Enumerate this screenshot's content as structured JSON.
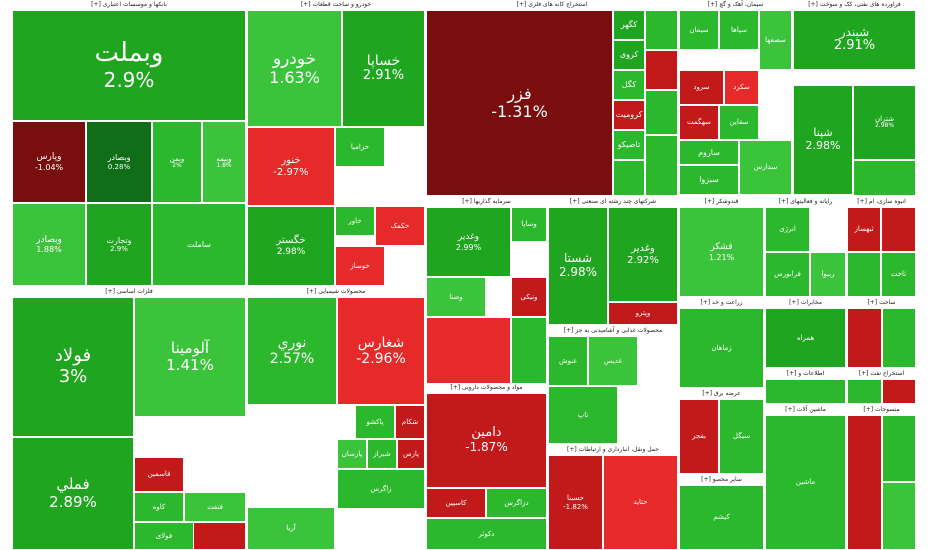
{
  "colors": {
    "strong_green": "#1fa51f",
    "green": "#2cb82c",
    "light_green": "#3cc33c",
    "dark_green": "#0f6e17",
    "dark_red": "#7a0d0d",
    "red": "#c21a1a",
    "bright_red": "#e62a2a"
  },
  "chart_data": {
    "type": "treemap",
    "sectors": [
      {
        "id": "s1",
        "title": "بانکها و موسسات اعتباری [+]"
      },
      {
        "id": "s2",
        "title": "خودرو و ساخت قطعات [+]"
      },
      {
        "id": "s3",
        "title": "استخراج کانه های فلزی [+]"
      },
      {
        "id": "s4",
        "title": "سیمان، آهک و گچ [+]"
      },
      {
        "id": "s5",
        "title": "فراورده های نفتی، کک و سوخت [+]"
      },
      {
        "id": "s6",
        "title": "فلزات اساسی [+]"
      },
      {
        "id": "s7",
        "title": "محصولات شیمیایی [+]"
      },
      {
        "id": "s8",
        "title": "سرمایه گذاریها [+]"
      },
      {
        "id": "s9",
        "title": "شرکتهای چند رشته ای صنعتی [+]"
      },
      {
        "id": "s10",
        "title": "قندوشکر [+]"
      },
      {
        "id": "s11",
        "title": "رایانه و فعالیتهای [+]"
      },
      {
        "id": "s12",
        "title": "انبوه سازی، ام [+]"
      },
      {
        "id": "s13",
        "title": "مواد و محصولات دارویی [+]"
      },
      {
        "id": "s14",
        "title": "محصولات غذایی و آشامیدنی به جز [+]"
      },
      {
        "id": "s15",
        "title": "حمل ونقل، انبارداری و ارتباطات [+]"
      },
      {
        "id": "s16",
        "title": "زراعت و خد [+]"
      },
      {
        "id": "s17",
        "title": "مخابرات [+]"
      },
      {
        "id": "s18",
        "title": "ساخت [+]"
      },
      {
        "id": "s19",
        "title": "عرضه برق [+]"
      },
      {
        "id": "s20",
        "title": "اطلاعات و [+]"
      },
      {
        "id": "s21",
        "title": "استخراج نفت [+]"
      },
      {
        "id": "s22",
        "title": "منسوجات [+]"
      },
      {
        "id": "s23",
        "title": "ماشین آلات [+]"
      },
      {
        "id": "s24",
        "title": "سایر محصو [+]"
      }
    ],
    "tiles": [
      {
        "sector": "s1",
        "name": "وبملت",
        "pct": "2.9%",
        "change": 2.9
      },
      {
        "sector": "s1",
        "name": "وپارس",
        "pct": "-1.04%",
        "change": -1.04
      },
      {
        "sector": "s1",
        "name": "وبصادر",
        "pct": "0.28%",
        "change": 0.28
      },
      {
        "sector": "s1",
        "name": "وبمن",
        "pct": "2%",
        "change": 2
      },
      {
        "sector": "s1",
        "name": "وبیمه",
        "pct": "1.8%",
        "change": 1.8
      },
      {
        "sector": "s1",
        "name": "وبصادر",
        "pct": "1.88%",
        "change": 1.88
      },
      {
        "sector": "s1",
        "name": "وتجارت",
        "pct": "2.9%",
        "change": 2.9
      },
      {
        "sector": "s1",
        "name": "ساملت",
        "pct": "",
        "change": 2.5
      },
      {
        "sector": "s2",
        "name": "خودرو",
        "pct": "1.63%",
        "change": 1.63
      },
      {
        "sector": "s2",
        "name": "خساپا",
        "pct": "2.91%",
        "change": 2.91
      },
      {
        "sector": "s2",
        "name": "خنور",
        "pct": "-2.97%",
        "change": -2.97
      },
      {
        "sector": "s2",
        "name": "خگستر",
        "pct": "2.98%",
        "change": 2.98
      },
      {
        "sector": "s2",
        "name": "خزامیا",
        "pct": "",
        "change": 2.5
      },
      {
        "sector": "s2",
        "name": "خاور",
        "pct": "",
        "change": 2.0
      },
      {
        "sector": "s2",
        "name": "خکمک",
        "pct": "",
        "change": -2.5
      },
      {
        "sector": "s2",
        "name": "خوساز",
        "pct": "",
        "change": -2.8
      },
      {
        "sector": "s3",
        "name": "فزر",
        "pct": "-1.31%",
        "change": -1.31
      },
      {
        "sector": "s3",
        "name": "کگهر",
        "pct": "",
        "change": 2.9
      },
      {
        "sector": "s3",
        "name": "کروی",
        "pct": "",
        "change": 2.8
      },
      {
        "sector": "s3",
        "name": "کگل",
        "pct": "",
        "change": 2.6
      },
      {
        "sector": "s3",
        "name": "کرومیت",
        "pct": "",
        "change": -1.5
      },
      {
        "sector": "s3",
        "name": "تاصیکو",
        "pct": "",
        "change": 2.1
      },
      {
        "sector": "s4",
        "name": "سیمان",
        "pct": "",
        "change": 2.5
      },
      {
        "sector": "s4",
        "name": "سپاها",
        "pct": "",
        "change": 2.4
      },
      {
        "sector": "s4",
        "name": "سرود",
        "pct": "",
        "change": -2.0
      },
      {
        "sector": "s4",
        "name": "سکرد",
        "pct": "",
        "change": -2.5
      },
      {
        "sector": "s4",
        "name": "سهگمت",
        "pct": "",
        "change": -1.9
      },
      {
        "sector": "s4",
        "name": "سصفها",
        "pct": "",
        "change": 1.5
      },
      {
        "sector": "s4",
        "name": "سقاین",
        "pct": "",
        "change": 2.2
      },
      {
        "sector": "s4",
        "name": "ساروم",
        "pct": "",
        "change": 2.7
      },
      {
        "sector": "s4",
        "name": "سبزوا",
        "pct": "",
        "change": 2.0
      },
      {
        "sector": "s4",
        "name": "سدارس",
        "pct": "",
        "change": 1.2
      },
      {
        "sector": "s5",
        "name": "شبندر",
        "pct": "2.91%",
        "change": 2.91
      },
      {
        "sector": "s5",
        "name": "شپنا",
        "pct": "2.98%",
        "change": 2.98
      },
      {
        "sector": "s5",
        "name": "شتران",
        "pct": "2.98%",
        "change": 2.98
      },
      {
        "sector": "s6",
        "name": "فولاد",
        "pct": "3%",
        "change": 3
      },
      {
        "sector": "s6",
        "name": "آلومینا",
        "pct": "1.41%",
        "change": 1.41
      },
      {
        "sector": "s6",
        "name": "فملي",
        "pct": "2.89%",
        "change": 2.89
      },
      {
        "sector": "s6",
        "name": "فاسمین",
        "pct": "",
        "change": -2.4
      },
      {
        "sector": "s6",
        "name": "کاوه",
        "pct": "",
        "change": 2.6
      },
      {
        "sector": "s6",
        "name": "فنفت",
        "pct": "",
        "change": 1.9
      },
      {
        "sector": "s6",
        "name": "فولای",
        "pct": "",
        "change": 2.3
      },
      {
        "sector": "s7",
        "name": "نوري",
        "pct": "2.57%",
        "change": 2.57
      },
      {
        "sector": "s7",
        "name": "شغارس",
        "pct": "-2.96%",
        "change": -2.96
      },
      {
        "sector": "s7",
        "name": "پاکشو",
        "pct": "",
        "change": 2.4
      },
      {
        "sector": "s7",
        "name": "شکام",
        "pct": "",
        "change": -1.9
      },
      {
        "sector": "s7",
        "name": "پارسان",
        "pct": "",
        "change": 1.7
      },
      {
        "sector": "s7",
        "name": "شیراز",
        "pct": "",
        "change": 2.2
      },
      {
        "sector": "s7",
        "name": "پارس",
        "pct": "",
        "change": -2.1
      },
      {
        "sector": "s7",
        "name": "زاگرس",
        "pct": "",
        "change": 2.0
      },
      {
        "sector": "s7",
        "name": "آریا",
        "pct": "",
        "change": 1.8
      },
      {
        "sector": "s8",
        "name": "وغدیر",
        "pct": "2.99%",
        "change": 2.99
      },
      {
        "sector": "s8",
        "name": "وساپا",
        "pct": "",
        "change": 2.3
      },
      {
        "sector": "s8",
        "name": "وصنا",
        "pct": "",
        "change": 1.6
      },
      {
        "sector": "s8",
        "name": "ونیکی",
        "pct": "",
        "change": -1.8
      },
      {
        "sector": "s9",
        "name": "شستا",
        "pct": "2.98%",
        "change": 2.98
      },
      {
        "sector": "s9",
        "name": "وغدیر",
        "pct": "2.92%",
        "change": 2.92
      },
      {
        "sector": "s9",
        "name": "وپترو",
        "pct": "",
        "change": -2.2
      },
      {
        "sector": "s10",
        "name": "قشکر",
        "pct": "1.21%",
        "change": 1.21
      },
      {
        "sector": "s11",
        "name": "انرژی",
        "pct": "",
        "change": 2.4
      },
      {
        "sector": "s11",
        "name": "فرابورس",
        "pct": "",
        "change": 2.0
      },
      {
        "sector": "s11",
        "name": "ریبوا",
        "pct": "",
        "change": 1.5
      },
      {
        "sector": "s12",
        "name": "ثبهساز",
        "pct": "",
        "change": -2.3
      },
      {
        "sector": "s12",
        "name": "ثاخت",
        "pct": "",
        "change": 2.6
      },
      {
        "sector": "s13",
        "name": "دامین",
        "pct": "-1.87%",
        "change": -1.87
      },
      {
        "sector": "s13",
        "name": "کاسپین",
        "pct": "",
        "change": -2.0
      },
      {
        "sector": "s13",
        "name": "دزاگرس",
        "pct": "",
        "change": 2.2
      },
      {
        "sector": "s13",
        "name": "دکوثر",
        "pct": "",
        "change": 2.5
      },
      {
        "sector": "s14",
        "name": "غنوش",
        "pct": "",
        "change": 2.2
      },
      {
        "sector": "s14",
        "name": "غدیس",
        "pct": "",
        "change": 1.7
      },
      {
        "sector": "s14",
        "name": "تاپ",
        "pct": "",
        "change": 2.5
      },
      {
        "sector": "s15",
        "name": "حسینا",
        "pct": "-1.82%",
        "change": -1.82
      },
      {
        "sector": "s15",
        "name": "حتاید",
        "pct": "",
        "change": -2.6
      },
      {
        "sector": "s16",
        "name": "زماهان",
        "pct": "",
        "change": 2.3
      },
      {
        "sector": "s17",
        "name": "همراه",
        "pct": "",
        "change": 2.8
      },
      {
        "sector": "s19",
        "name": "بفجر",
        "pct": "",
        "change": -2.0
      },
      {
        "sector": "s19",
        "name": "سیگل",
        "pct": "",
        "change": 2.2
      },
      {
        "sector": "s23",
        "name": "ماشین",
        "pct": "",
        "change": 2.1
      },
      {
        "sector": "s24",
        "name": "کیشم",
        "pct": "",
        "change": 2.4
      }
    ]
  }
}
